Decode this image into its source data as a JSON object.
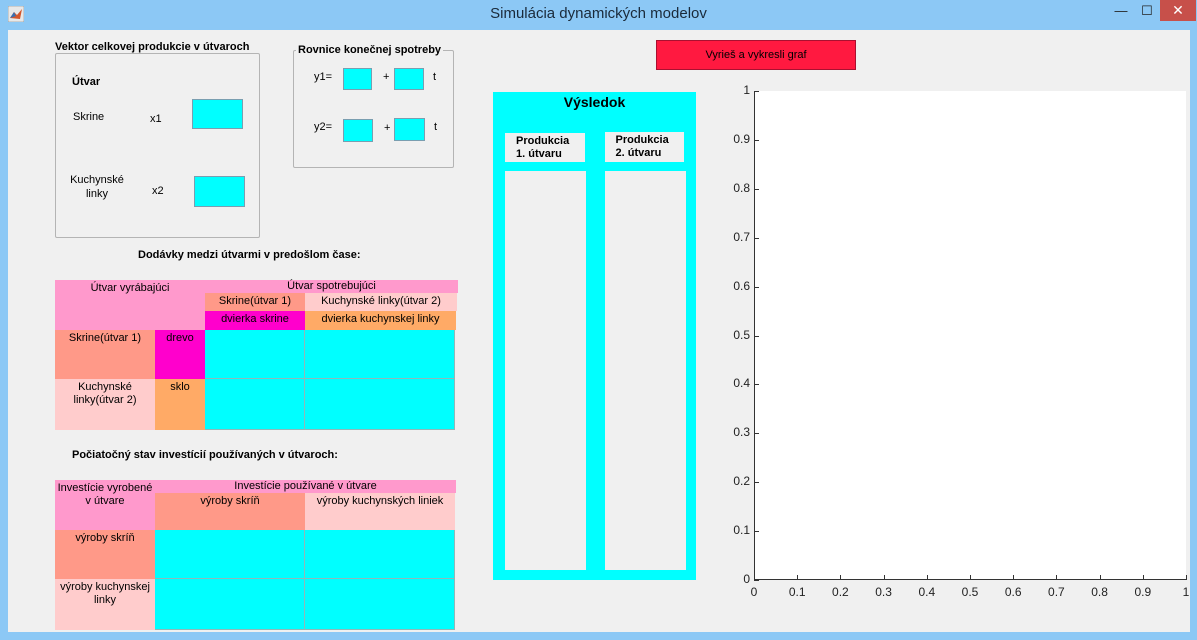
{
  "window": {
    "title": "Simulácia dynamických modelov",
    "minimize": "—",
    "maximize": "☐",
    "close": "✕",
    "icon": "matlab-icon"
  },
  "vektor": {
    "title": "Vektor celkovej produkcie v útvaroch",
    "header": "Útvar",
    "row1_label": "Skrine",
    "row1_var": "x1",
    "row2_label": "Kuchynské linky",
    "row2_var": "x2"
  },
  "rovnice": {
    "title": "Rovnice konečnej spotreby",
    "y1": "y1=",
    "y2": "y2=",
    "plus": "+",
    "t": "t"
  },
  "dodavky": {
    "title": "Dodávky medzi útvarmi v predošlom čase:",
    "producer_header": "Útvar vyrábajúci",
    "consumer_header": "Útvar spotrebujúci",
    "col1": "Skrine(útvar 1)",
    "col2": "Kuchynské linky(útvar 2)",
    "col1_sub": "dvierka skrine",
    "col2_sub": "dvierka kuchynskej linky",
    "row1": "Skrine(útvar 1)",
    "row1_sub": "drevo",
    "row2": "Kuchynské linky(útvar 2)",
    "row2_sub": "sklo"
  },
  "investicie": {
    "title": "Počiatočný stav investícií používaných v útvaroch:",
    "producer_header": "Investície vyrobené v útvare",
    "consumer_header": "Investície používané v útvare",
    "col1": "výroby skríň",
    "col2": "výroby kuchynských liniek",
    "row1": "výroby skríň",
    "row2": "výroby kuchynskej linky"
  },
  "solve_button": "Vyrieš a vykresli graf",
  "vysledok": {
    "title": "Výsledok",
    "col1": "Produkcia 1. útvaru",
    "col2": "Produkcia 2. útvaru"
  },
  "chart_data": {
    "type": "line",
    "series": [],
    "xlim": [
      0,
      1
    ],
    "ylim": [
      0,
      1
    ],
    "xticks": [
      "0",
      "0.1",
      "0.2",
      "0.3",
      "0.4",
      "0.5",
      "0.6",
      "0.7",
      "0.8",
      "0.9",
      "1"
    ],
    "yticks": [
      "0",
      "0.1",
      "0.2",
      "0.3",
      "0.4",
      "0.5",
      "0.6",
      "0.7",
      "0.8",
      "0.9",
      "1"
    ],
    "grid": false
  }
}
